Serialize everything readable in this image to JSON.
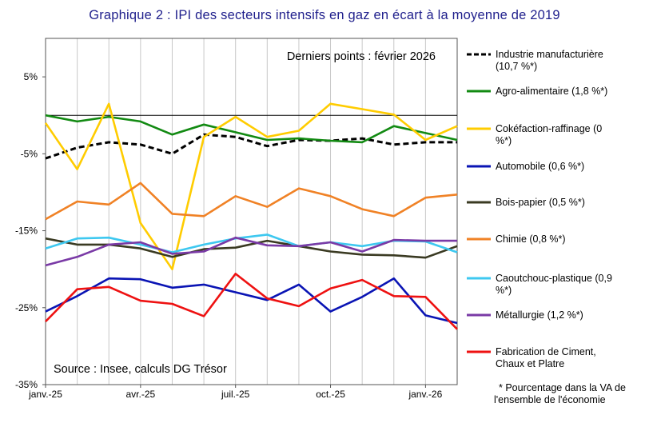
{
  "chart_data": {
    "type": "line",
    "title": "Graphique  2 : IPI des secteurs intensifs en gaz en écart à la moyenne de 2019",
    "xlabel": "",
    "ylabel": "",
    "ylim": [
      -35,
      10
    ],
    "y_ticks": [
      "5%",
      "-5%",
      "-15%",
      "-25%",
      "-35%"
    ],
    "y_tick_values": [
      5,
      -5,
      -15,
      -25,
      -35
    ],
    "x": [
      "2025-01",
      "2025-02",
      "2025-03",
      "2025-04",
      "2025-05",
      "2025-06",
      "2025-07",
      "2025-08",
      "2025-09",
      "2025-10",
      "2025-11",
      "2025-12",
      "2026-01",
      "2026-02"
    ],
    "x_ticks": [
      "janv.-25",
      "avr.-25",
      "juil.-25",
      "oct.-25",
      "janv.-26"
    ],
    "x_tick_positions": [
      "2025-01",
      "2025-04",
      "2025-07",
      "2025-10",
      "2026-01"
    ],
    "grid": "vertical at each month",
    "zero_line": true,
    "legend_position": "right",
    "annotation_top": "Derniers points : février 2026",
    "annotation_source": "Source : Insee, calculs DG Trésor",
    "footnote": "* Pourcentage dans la VA de l'ensemble de l'économie",
    "series": [
      {
        "name": "Industrie manufacturière (10,7 %*)",
        "color": "#000000",
        "dash": true,
        "values": [
          -5.6,
          -4.2,
          -3.5,
          -3.8,
          -5.0,
          -2.5,
          -2.8,
          -4.0,
          -3.2,
          -3.3,
          -3.0,
          -3.8,
          -3.5,
          -3.5
        ]
      },
      {
        "name": "Agro-alimentaire (1,8 %*)",
        "color": "#128a12",
        "dash": false,
        "values": [
          0.0,
          -0.8,
          -0.2,
          -0.8,
          -2.5,
          -1.2,
          -2.2,
          -3.2,
          -3.0,
          -3.3,
          -3.5,
          -1.4,
          -2.3,
          -3.2
        ]
      },
      {
        "name": "Cokéfaction-raffinage (0 %*)",
        "color": "#ffcc00",
        "dash": false,
        "values": [
          -1.0,
          -7.0,
          1.5,
          -14.0,
          -20.0,
          -2.8,
          -0.2,
          -2.8,
          -2.0,
          1.5,
          0.8,
          0.1,
          -3.2,
          -1.4
        ]
      },
      {
        "name": "Automobile (0,6 %*)",
        "color": "#0a14b4",
        "dash": false,
        "values": [
          -25.5,
          -23.5,
          -21.2,
          -21.3,
          -22.4,
          -22.0,
          -23.0,
          -24.0,
          -22.0,
          -25.5,
          -23.6,
          -21.2,
          -26.0,
          -27.0
        ]
      },
      {
        "name": "Bois-papier (0,5 %*)",
        "color": "#3a3a22",
        "dash": false,
        "values": [
          -16.0,
          -16.8,
          -16.8,
          -17.3,
          -18.4,
          -17.4,
          -17.2,
          -16.3,
          -17.0,
          -17.7,
          -18.1,
          -18.2,
          -18.5,
          -17.0
        ]
      },
      {
        "name": "Chimie (0,8 %*)",
        "color": "#f08226",
        "dash": false,
        "values": [
          -13.5,
          -11.2,
          -11.6,
          -8.8,
          -12.8,
          -13.1,
          -10.5,
          -11.9,
          -9.5,
          -10.5,
          -12.2,
          -13.1,
          -10.7,
          -10.3
        ]
      },
      {
        "name": "Caoutchouc-plastique (0,9 %*)",
        "color": "#3ec8f0",
        "dash": false,
        "values": [
          -17.3,
          -16.0,
          -15.9,
          -16.8,
          -17.8,
          -16.8,
          -16.0,
          -15.5,
          -17.0,
          -16.5,
          -17.0,
          -16.3,
          -16.4,
          -17.8
        ]
      },
      {
        "name": "Métallurgie (1,2 %*)",
        "color": "#7a3aa6",
        "dash": false,
        "values": [
          -19.5,
          -18.4,
          -16.8,
          -16.5,
          -18.0,
          -17.7,
          -15.9,
          -16.9,
          -17.0,
          -16.5,
          -17.7,
          -16.2,
          -16.3,
          -16.3
        ]
      },
      {
        "name": "Fabrication de Ciment, Chaux et Platre",
        "color": "#ee1111",
        "dash": false,
        "values": [
          -26.8,
          -22.6,
          -22.3,
          -24.1,
          -24.5,
          -26.1,
          -20.6,
          -23.8,
          -24.8,
          -22.5,
          -21.4,
          -23.5,
          -23.6,
          -27.8
        ]
      }
    ]
  }
}
